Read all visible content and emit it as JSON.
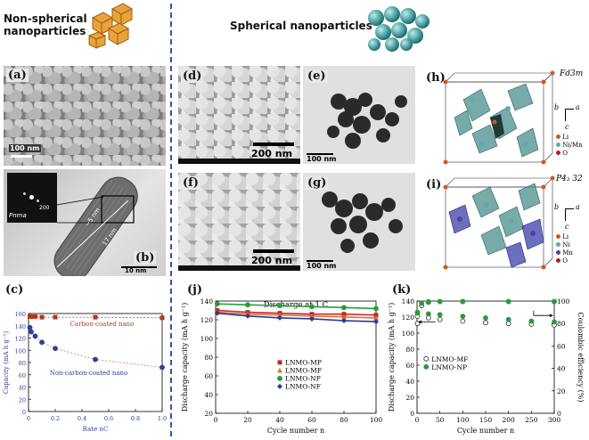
{
  "headers": {
    "left": [
      "Non-spherical",
      "nanoparticles"
    ],
    "right": "Spherical nanoparticles"
  },
  "panels": {
    "a": {
      "label": "(a)",
      "scale": "100 nm"
    },
    "b": {
      "label": "(b)",
      "scale": "10 nm",
      "inset_text": "Pnma",
      "inset_spot": "200",
      "measure1": "~5 nm",
      "measure2": "17 nm"
    },
    "c": {
      "label": "(c)"
    },
    "d": {
      "label": "(d)",
      "scale": "200 nm"
    },
    "e": {
      "label": "(e)",
      "scale": "100 nm"
    },
    "f": {
      "label": "(f)",
      "scale": "200 nm"
    },
    "g": {
      "label": "(g)",
      "scale": "100 nm"
    },
    "h": {
      "label": "(h)",
      "space_group": "Fd3m",
      "legend": [
        "Li",
        "Ni/Mn",
        "O"
      ],
      "axes": [
        "b",
        "a",
        "c"
      ]
    },
    "i": {
      "label": "(i)",
      "space_group": "P4₃ 32",
      "legend": [
        "Li",
        "Ni",
        "Mn",
        "O"
      ],
      "axes": [
        "b",
        "a",
        "c"
      ]
    },
    "j": {
      "label": "(j)"
    },
    "k": {
      "label": "(k)"
    }
  },
  "colors": {
    "divider": "#3355aa",
    "carbon": "#b03a1e",
    "noncarbon": "#2c3f99",
    "mp": "#c0282c",
    "mf": "#e07030",
    "np": "#2a9a3c",
    "nf": "#2a3a9a",
    "k_np": "#2a9a3c"
  },
  "chart_data": [
    {
      "panel": "c",
      "type": "line",
      "ylabel": "Capacity (mA h g⁻¹)",
      "xlabel": "Rate nC",
      "xlim": [
        0,
        1.0
      ],
      "ylim": [
        0,
        160
      ],
      "xticks": [
        "0",
        "0.2",
        "0.4",
        "0.6",
        "0.8",
        "1.0"
      ],
      "yticks": [
        "0",
        "20",
        "40",
        "60",
        "80",
        "100",
        "120",
        "140",
        "160"
      ],
      "annotations": [
        "Carbon-coated nano",
        "Non-carbon-coated nano"
      ],
      "series": [
        {
          "name": "Carbon-coated nano",
          "x": [
            0.01,
            0.02,
            0.05,
            0.1,
            0.2,
            0.5,
            1.0
          ],
          "y": [
            155,
            155,
            155,
            154,
            154,
            154,
            153
          ]
        },
        {
          "name": "Non-carbon-coated nano",
          "x": [
            0.01,
            0.02,
            0.05,
            0.1,
            0.2,
            0.5,
            1.0
          ],
          "y": [
            137,
            130,
            123,
            113,
            103,
            85,
            72
          ]
        }
      ]
    },
    {
      "panel": "j",
      "type": "line",
      "title": "Discharge at 1 C",
      "ylabel": "Discharge capacity (mA h g⁻¹)",
      "xlabel": "Cycle number n",
      "xlim": [
        0,
        100
      ],
      "ylim": [
        20,
        140
      ],
      "xticks": [
        "0",
        "20",
        "40",
        "60",
        "80",
        "100"
      ],
      "yticks": [
        "20",
        "40",
        "60",
        "80",
        "100",
        "120",
        "140"
      ],
      "series": [
        {
          "name": "LNMO-MP",
          "x": [
            1,
            20,
            40,
            60,
            80,
            100
          ],
          "y": [
            130,
            128,
            127,
            126,
            126,
            125
          ]
        },
        {
          "name": "LNMO-MF",
          "x": [
            1,
            20,
            40,
            60,
            80,
            100
          ],
          "y": [
            128,
            126,
            125,
            124,
            123,
            122
          ]
        },
        {
          "name": "LNMO-NP",
          "x": [
            1,
            20,
            40,
            60,
            80,
            100
          ],
          "y": [
            137,
            136,
            135,
            134,
            133,
            132
          ]
        },
        {
          "name": "LNMO-NF",
          "x": [
            1,
            20,
            40,
            60,
            80,
            100
          ],
          "y": [
            127,
            124,
            122,
            121,
            119,
            118
          ]
        }
      ]
    },
    {
      "panel": "k",
      "type": "scatter",
      "ylabel": "Discharge capacity (mA h g⁻¹)",
      "y2label": "Coulombic efficiency (%)",
      "xlabel": "Cycle number n",
      "xlim": [
        0,
        300
      ],
      "ylim": [
        0,
        140
      ],
      "y2lim": [
        0,
        100
      ],
      "xticks": [
        "0",
        "50",
        "100",
        "150",
        "200",
        "250",
        "300"
      ],
      "yticks": [
        "0",
        "20",
        "40",
        "60",
        "80",
        "100",
        "120",
        "140"
      ],
      "y2ticks": [
        "0",
        "20",
        "40",
        "60",
        "80",
        "100"
      ],
      "series": [
        {
          "name": "LNMO-MF",
          "x": [
            1,
            25,
            50,
            100,
            150,
            200,
            250,
            300
          ],
          "y": [
            121,
            119,
            117,
            115,
            113,
            112,
            111,
            110
          ]
        },
        {
          "name": "LNMO-NP",
          "x": [
            1,
            25,
            50,
            100,
            150,
            200,
            250,
            300
          ],
          "y": [
            125,
            124,
            123,
            121,
            119,
            117,
            115,
            114
          ]
        },
        {
          "name": "CE LNMO-MF",
          "axis": "y2",
          "x": [
            1,
            10,
            25,
            50,
            100,
            200,
            300
          ],
          "y": [
            80,
            96,
            99,
            99.5,
            99.5,
            99.5,
            99.5
          ]
        },
        {
          "name": "CE LNMO-NP",
          "axis": "y2",
          "x": [
            1,
            10,
            25,
            50,
            100,
            200,
            300
          ],
          "y": [
            90,
            98,
            99.5,
            99.6,
            99.6,
            99.6,
            99.6
          ]
        }
      ]
    }
  ]
}
